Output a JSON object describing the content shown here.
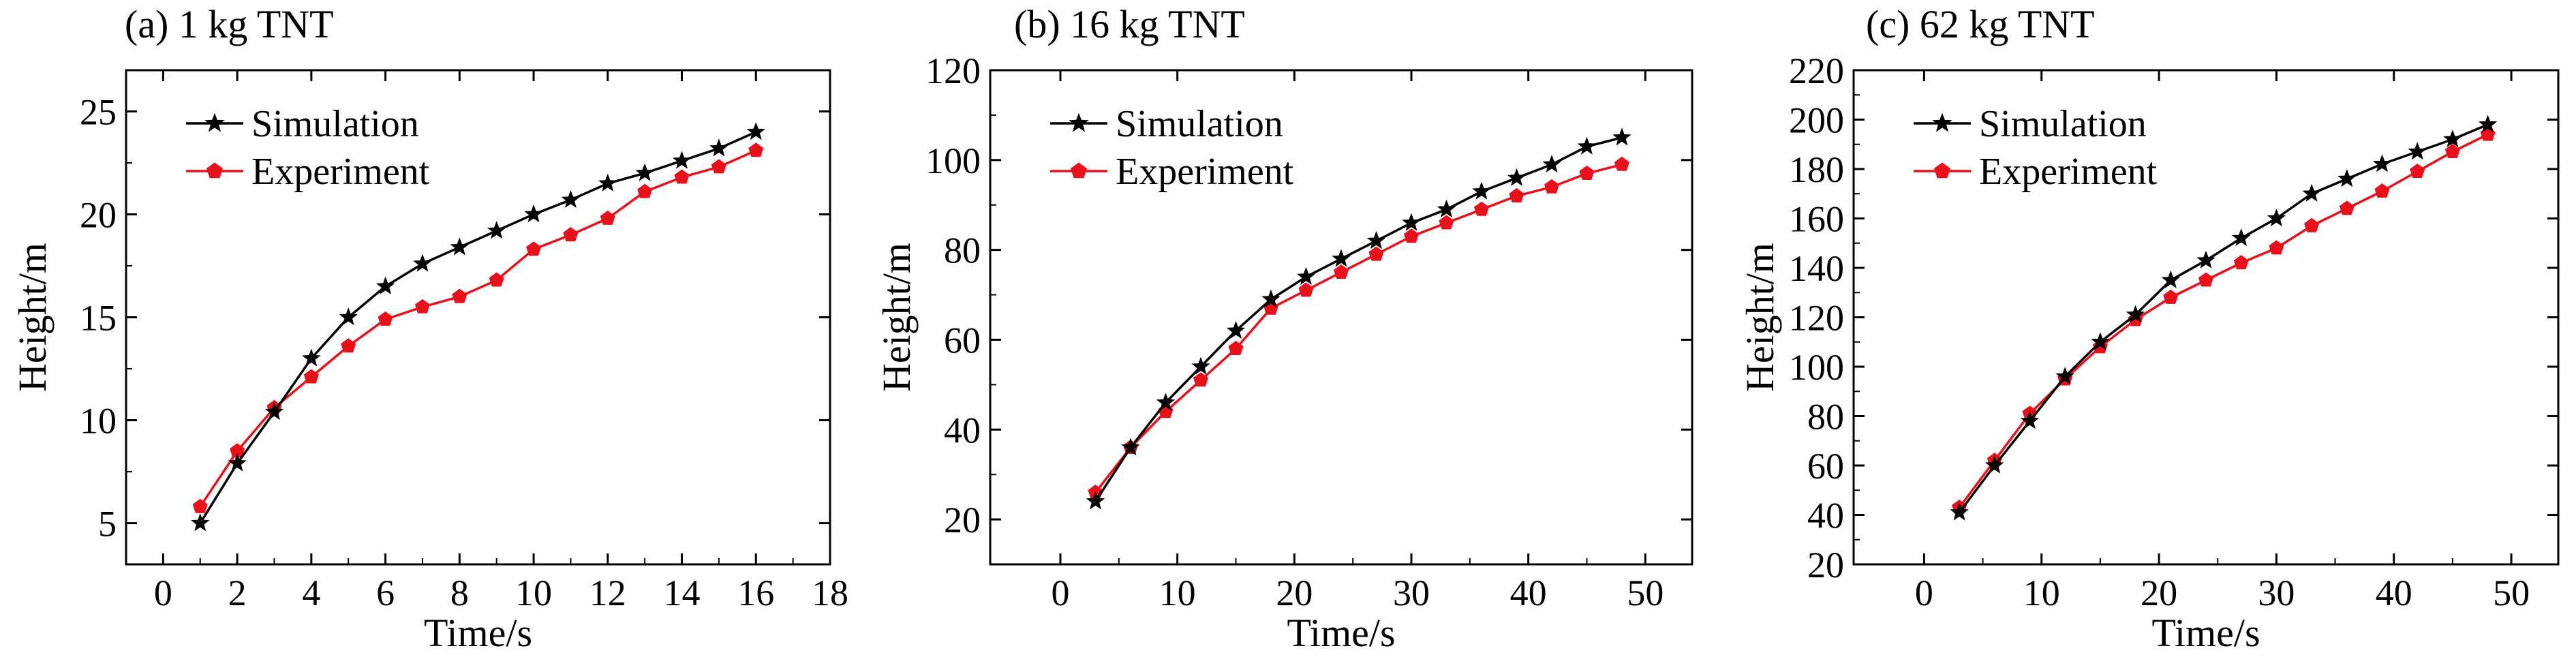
{
  "chart_data": [
    {
      "type": "line",
      "title": "(a) 1 kg TNT",
      "xlabel": "Time/s",
      "ylabel": "Height/m",
      "xlim": [
        -1,
        18
      ],
      "ylim": [
        3,
        27
      ],
      "xticks": [
        0,
        2,
        4,
        6,
        8,
        10,
        12,
        14,
        16,
        18
      ],
      "yticks": [
        5,
        10,
        15,
        20,
        25
      ],
      "grid": false,
      "legend": "top-left",
      "series": [
        {
          "name": "Simulation",
          "color": "#000000",
          "marker": "star",
          "x": [
            1,
            2,
            3,
            4,
            5,
            6,
            7,
            8,
            9,
            10,
            11,
            12,
            13,
            14,
            15,
            16
          ],
          "y": [
            5.0,
            7.9,
            10.4,
            13.0,
            15.0,
            16.5,
            17.6,
            18.4,
            19.2,
            20.0,
            20.7,
            21.5,
            22.0,
            22.6,
            23.2,
            24.0
          ]
        },
        {
          "name": "Experiment",
          "color": "#e8101a",
          "marker": "pentagon",
          "x": [
            1,
            2,
            3,
            4,
            5,
            6,
            7,
            8,
            9,
            10,
            11,
            12,
            13,
            14,
            15,
            16
          ],
          "y": [
            5.8,
            8.5,
            10.6,
            12.1,
            13.6,
            14.9,
            15.5,
            16.0,
            16.8,
            18.3,
            19.0,
            19.8,
            21.1,
            21.8,
            22.3,
            23.1
          ]
        }
      ]
    },
    {
      "type": "line",
      "title": "(b) 16 kg TNT",
      "xlabel": "Time/s",
      "ylabel": "Height/m",
      "xlim": [
        -6,
        54
      ],
      "ylim": [
        10,
        120
      ],
      "xticks": [
        0,
        10,
        20,
        30,
        40,
        50
      ],
      "yticks": [
        20,
        40,
        60,
        80,
        100,
        120
      ],
      "grid": false,
      "legend": "top-left",
      "series": [
        {
          "name": "Simulation",
          "color": "#000000",
          "marker": "star",
          "x": [
            3,
            6,
            9,
            12,
            15,
            18,
            21,
            24,
            27,
            30,
            33,
            36,
            39,
            42,
            45,
            48
          ],
          "y": [
            24,
            36,
            46,
            54,
            62,
            69,
            74,
            78,
            82,
            86,
            89,
            93,
            96,
            99,
            103,
            105
          ]
        },
        {
          "name": "Experiment",
          "color": "#e8101a",
          "marker": "pentagon",
          "x": [
            3,
            6,
            9,
            12,
            15,
            18,
            21,
            24,
            27,
            30,
            33,
            36,
            39,
            42,
            45,
            48
          ],
          "y": [
            26,
            36,
            44,
            51,
            58,
            67,
            71,
            75,
            79,
            83,
            86,
            89,
            92,
            94,
            97,
            99
          ]
        }
      ]
    },
    {
      "type": "line",
      "title": "(c) 62 kg TNT",
      "xlabel": "Time/s",
      "ylabel": "Height/m",
      "xlim": [
        -6,
        54
      ],
      "ylim": [
        20,
        220
      ],
      "xticks": [
        0,
        10,
        20,
        30,
        40,
        50
      ],
      "yticks": [
        20,
        40,
        60,
        80,
        100,
        120,
        140,
        160,
        180,
        200,
        220
      ],
      "grid": false,
      "legend": "top-left",
      "series": [
        {
          "name": "Simulation",
          "color": "#000000",
          "marker": "star",
          "x": [
            3,
            6,
            9,
            12,
            15,
            18,
            21,
            24,
            27,
            30,
            33,
            36,
            39,
            42,
            45,
            48
          ],
          "y": [
            41,
            60,
            78,
            96,
            110,
            121,
            135,
            143,
            152,
            160,
            170,
            176,
            182,
            187,
            192,
            198
          ]
        },
        {
          "name": "Experiment",
          "color": "#e8101a",
          "marker": "pentagon",
          "x": [
            3,
            6,
            9,
            12,
            15,
            18,
            21,
            24,
            27,
            30,
            33,
            36,
            39,
            42,
            45,
            48
          ],
          "y": [
            43,
            62,
            81,
            95,
            108,
            119,
            128,
            135,
            142,
            148,
            157,
            164,
            171,
            179,
            187,
            194
          ]
        }
      ]
    }
  ]
}
